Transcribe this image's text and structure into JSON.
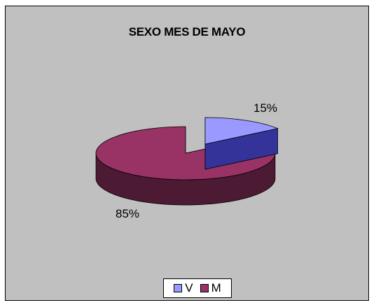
{
  "chart_data": {
    "type": "pie",
    "title": "SEXO MES DE MAYO",
    "categories": [
      "V",
      "M"
    ],
    "values": [
      15,
      85
    ],
    "data_labels": [
      "15%",
      "85%"
    ],
    "three_d": true,
    "exploded_slice": "V",
    "legend_position": "bottom"
  },
  "colors": {
    "background": "#c0c0c0",
    "V_top": "#9999ff",
    "V_side": "#333399",
    "M_top": "#993366",
    "M_side": "#4d1a33"
  }
}
